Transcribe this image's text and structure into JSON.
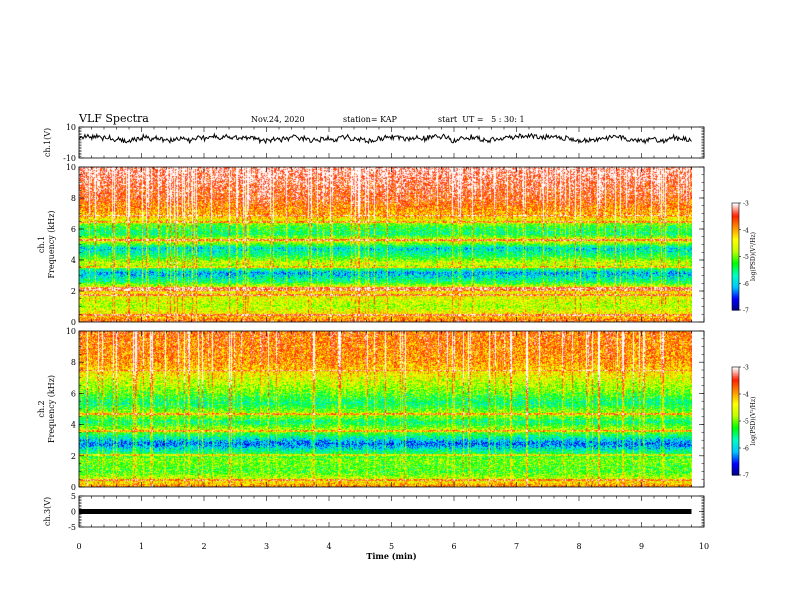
{
  "header": {
    "title": "VLF Spectra",
    "date": "Nov.24, 2020",
    "station": "station= KAP",
    "start": "start  UT =   5 : 30: 1"
  },
  "chart_data": [
    {
      "type": "line",
      "name": "ch1-waveform",
      "ylabel": "ch.1(V)",
      "ylim": [
        -10,
        10
      ],
      "yticklabels": [
        "10",
        "-10"
      ],
      "xlim": [
        0,
        10
      ],
      "x_extent_min": 9.8,
      "mean_level": 2.5,
      "fluctuation_amplitude": 3,
      "color": "#000000"
    },
    {
      "type": "heatmap",
      "name": "ch1-spectrogram",
      "ylabel": "ch.1\nFrequency (kHz)",
      "ylim": [
        0,
        10
      ],
      "yticklabels": [
        "0",
        "2",
        "4",
        "6",
        "8",
        "10"
      ],
      "xlim": [
        0,
        10
      ],
      "x_extent_min": 9.8,
      "colorbar": {
        "label": "log(PSD)(V²/Hz)",
        "ticks": [
          "-3",
          "-4",
          "-5",
          "-6",
          "-7"
        ],
        "range": [
          -7,
          -3
        ]
      },
      "narrowband_lines_khz": [
        0.5,
        1.8,
        2.1,
        2.25,
        3.6,
        5.3,
        6.5,
        6.9
      ],
      "band_profile_khz_logpsd": [
        [
          0,
          -3.6
        ],
        [
          0.4,
          -4.2
        ],
        [
          1,
          -4.8
        ],
        [
          1.5,
          -4.6
        ],
        [
          2.2,
          -4.2
        ],
        [
          2.6,
          -5.5
        ],
        [
          3.2,
          -6.2
        ],
        [
          3.8,
          -4.6
        ],
        [
          4.3,
          -5.5
        ],
        [
          4.8,
          -6.0
        ],
        [
          5.3,
          -4.4
        ],
        [
          5.7,
          -5.6
        ],
        [
          6.2,
          -5.3
        ],
        [
          6.8,
          -4.2
        ],
        [
          8,
          -3.6
        ],
        [
          10,
          -3.2
        ]
      ],
      "colormap": [
        "#000080",
        "#0000ff",
        "#00c8ff",
        "#00ffc0",
        "#00ff00",
        "#c0ff00",
        "#ffff00",
        "#ff9000",
        "#ff2000",
        "#ffffff"
      ]
    },
    {
      "type": "heatmap",
      "name": "ch2-spectrogram",
      "ylabel": "ch.2\nFrequency (kHz)",
      "ylim": [
        0,
        10
      ],
      "yticklabels": [
        "0",
        "2",
        "4",
        "6",
        "8",
        "10"
      ],
      "xlim": [
        0,
        10
      ],
      "x_extent_min": 9.8,
      "colorbar": {
        "label": "log(PSD)(V²/Hz)",
        "ticks": [
          "-3",
          "-4",
          "-5",
          "-6",
          "-7"
        ],
        "range": [
          -7,
          -3
        ]
      },
      "narrowband_lines_khz": [
        0.5,
        2.1,
        3.6,
        4.7,
        7.5
      ],
      "band_profile_khz_logpsd": [
        [
          0,
          -3.8
        ],
        [
          0.5,
          -4.6
        ],
        [
          1,
          -5.2
        ],
        [
          1.8,
          -5.0
        ],
        [
          2.3,
          -5.6
        ],
        [
          2.8,
          -6.4
        ],
        [
          3.3,
          -5.6
        ],
        [
          3.7,
          -4.8
        ],
        [
          4.2,
          -5.6
        ],
        [
          4.7,
          -4.8
        ],
        [
          5.4,
          -5.6
        ],
        [
          6.2,
          -5.0
        ],
        [
          7,
          -4.6
        ],
        [
          8,
          -4.0
        ],
        [
          10,
          -3.8
        ]
      ],
      "colormap": [
        "#000080",
        "#0000ff",
        "#00c8ff",
        "#00ffc0",
        "#00ff00",
        "#c0ff00",
        "#ffff00",
        "#ff9000",
        "#ff2000",
        "#ffffff"
      ]
    },
    {
      "type": "line",
      "name": "ch3-waveform",
      "ylabel": "ch.3(V)",
      "ylim": [
        -5,
        5
      ],
      "yticklabels": [
        "5",
        "0",
        "-5"
      ],
      "xlim": [
        0,
        10
      ],
      "x_extent_min": 9.8,
      "level": 0,
      "color": "#000000"
    }
  ],
  "xaxis": {
    "label": "Time (min)",
    "ticks": [
      "0",
      "1",
      "2",
      "3",
      "4",
      "5",
      "6",
      "7",
      "8",
      "9",
      "10"
    ]
  }
}
